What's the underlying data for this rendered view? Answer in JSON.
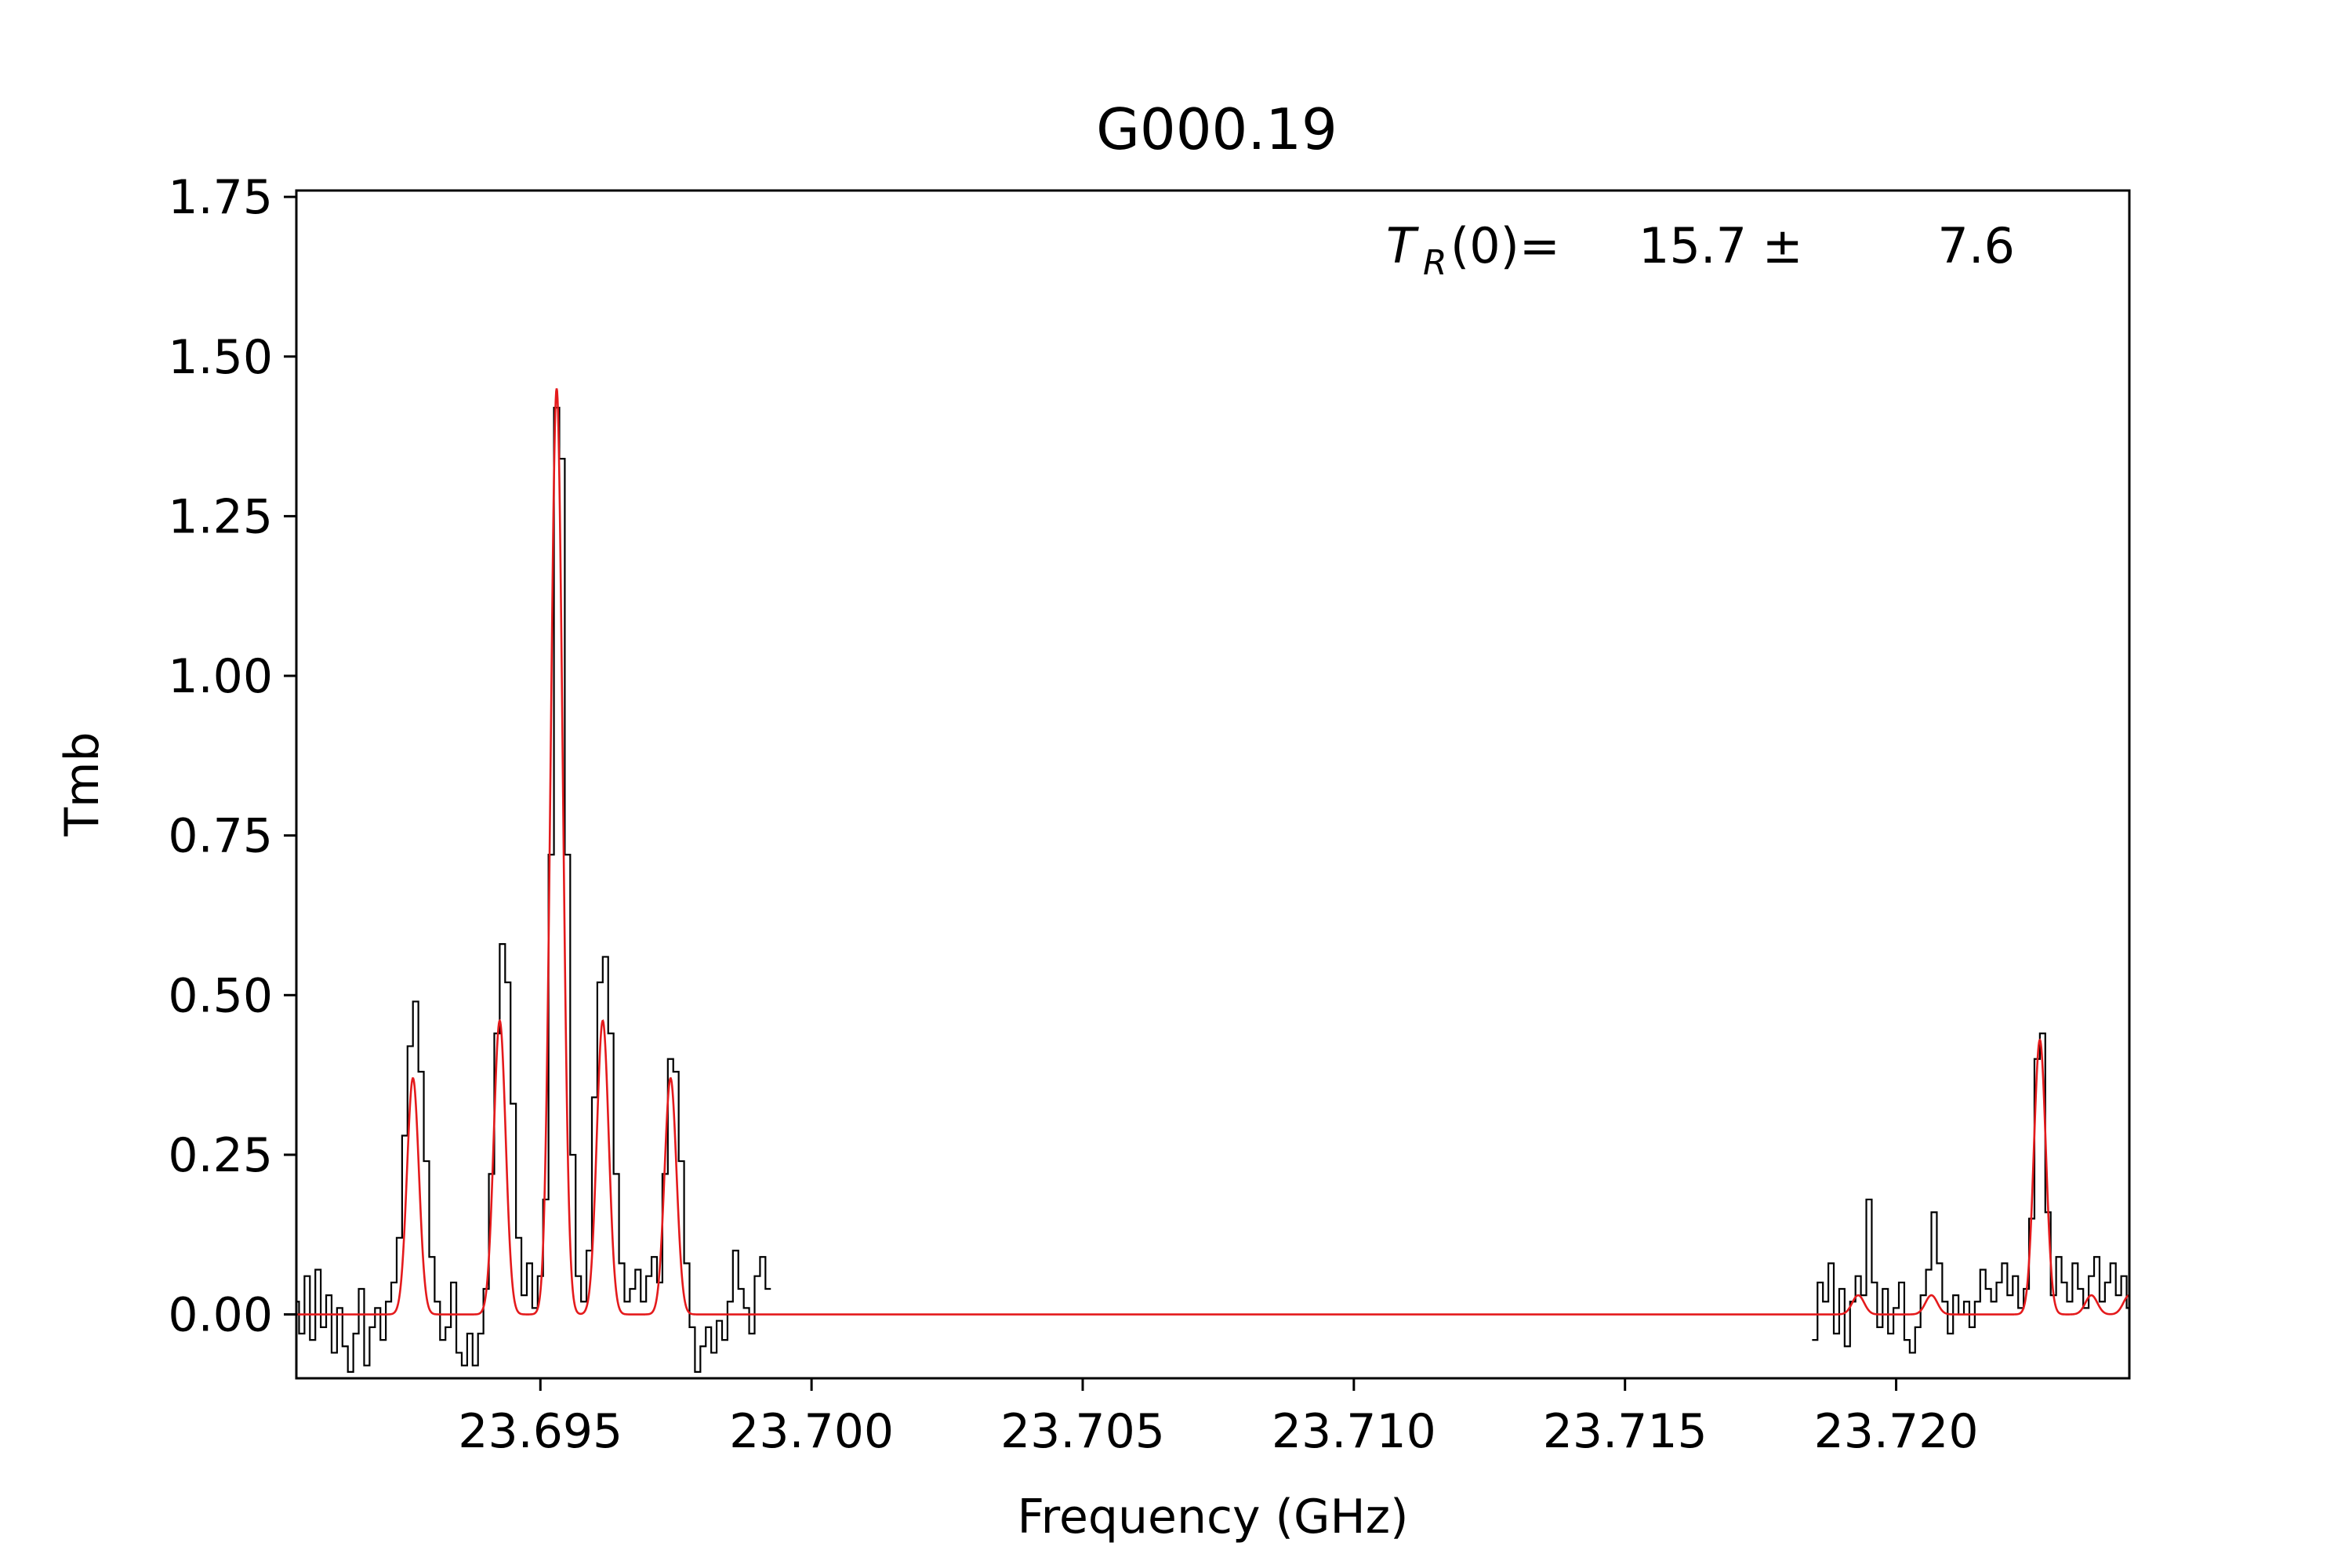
{
  "chart_data": {
    "type": "line",
    "title": "G000.19",
    "xlabel": "Frequency (GHz)",
    "ylabel": "Tmb",
    "xlim": [
      23.6905,
      23.7243
    ],
    "ylim": [
      -0.1,
      1.76
    ],
    "x_ticks": [
      23.695,
      23.7,
      23.705,
      23.71,
      23.715,
      23.72
    ],
    "x_tick_labels": [
      "23.695",
      "23.700",
      "23.705",
      "23.710",
      "23.715",
      "23.720"
    ],
    "y_ticks": [
      0.0,
      0.25,
      0.5,
      0.75,
      1.0,
      1.25,
      1.5,
      1.75
    ],
    "y_tick_labels": [
      "0.00",
      "0.25",
      "0.50",
      "0.75",
      "1.00",
      "1.25",
      "1.50",
      "1.75"
    ],
    "grid": false,
    "annotation": {
      "label_main": "T",
      "label_sub": "R",
      "label_rest": "(0)=",
      "value": "15.7 ±",
      "error": "7.6"
    },
    "series": [
      {
        "color": "#000000",
        "style": "steps",
        "segments": [
          [
            [
              23.6905,
              0.02
            ],
            [
              23.6906,
              -0.03
            ],
            [
              23.6907,
              0.06
            ],
            [
              23.6908,
              -0.04
            ],
            [
              23.6909,
              0.07
            ],
            [
              23.691,
              -0.02
            ],
            [
              23.6911,
              0.03
            ],
            [
              23.6912,
              -0.06
            ],
            [
              23.6913,
              0.01
            ],
            [
              23.6914,
              -0.05
            ],
            [
              23.6915,
              -0.09
            ],
            [
              23.6916,
              -0.03
            ],
            [
              23.6917,
              0.04
            ],
            [
              23.6918,
              -0.08
            ],
            [
              23.6919,
              -0.02
            ],
            [
              23.692,
              0.01
            ],
            [
              23.6921,
              -0.04
            ],
            [
              23.6922,
              0.02
            ],
            [
              23.6923,
              0.05
            ],
            [
              23.6924,
              0.12
            ],
            [
              23.6925,
              0.28
            ],
            [
              23.6926,
              0.42
            ],
            [
              23.6927,
              0.49
            ],
            [
              23.6928,
              0.38
            ],
            [
              23.6929,
              0.24
            ],
            [
              23.693,
              0.09
            ],
            [
              23.6931,
              0.02
            ],
            [
              23.6932,
              -0.04
            ],
            [
              23.6933,
              -0.02
            ],
            [
              23.6934,
              0.05
            ],
            [
              23.6935,
              -0.06
            ],
            [
              23.6936,
              -0.08
            ],
            [
              23.6937,
              -0.03
            ],
            [
              23.6938,
              -0.08
            ],
            [
              23.6939,
              -0.03
            ],
            [
              23.694,
              0.04
            ],
            [
              23.6941,
              0.22
            ],
            [
              23.6942,
              0.44
            ],
            [
              23.6943,
              0.58
            ],
            [
              23.6944,
              0.52
            ],
            [
              23.6945,
              0.33
            ],
            [
              23.6946,
              0.12
            ],
            [
              23.6947,
              0.03
            ],
            [
              23.6948,
              0.08
            ],
            [
              23.6949,
              0.01
            ],
            [
              23.695,
              0.06
            ],
            [
              23.6951,
              0.18
            ],
            [
              23.6952,
              0.72
            ],
            [
              23.6953,
              1.42
            ],
            [
              23.6954,
              1.34
            ],
            [
              23.6955,
              0.72
            ],
            [
              23.6956,
              0.25
            ],
            [
              23.6957,
              0.06
            ],
            [
              23.6958,
              0.02
            ],
            [
              23.6959,
              0.1
            ],
            [
              23.696,
              0.34
            ],
            [
              23.6961,
              0.52
            ],
            [
              23.6962,
              0.56
            ],
            [
              23.6963,
              0.44
            ],
            [
              23.6964,
              0.22
            ],
            [
              23.6965,
              0.08
            ],
            [
              23.6966,
              0.02
            ],
            [
              23.6967,
              0.04
            ],
            [
              23.6968,
              0.07
            ],
            [
              23.6969,
              0.02
            ],
            [
              23.697,
              0.06
            ],
            [
              23.6971,
              0.09
            ],
            [
              23.6972,
              0.05
            ],
            [
              23.6973,
              0.22
            ],
            [
              23.6974,
              0.4
            ],
            [
              23.6975,
              0.38
            ],
            [
              23.6976,
              0.24
            ],
            [
              23.6977,
              0.08
            ],
            [
              23.6978,
              -0.02
            ],
            [
              23.6979,
              -0.09
            ],
            [
              23.698,
              -0.05
            ],
            [
              23.6981,
              -0.02
            ],
            [
              23.6982,
              -0.06
            ],
            [
              23.6983,
              -0.01
            ],
            [
              23.6984,
              -0.04
            ],
            [
              23.6985,
              0.02
            ],
            [
              23.6986,
              0.1
            ],
            [
              23.6987,
              0.04
            ],
            [
              23.6988,
              0.01
            ],
            [
              23.6989,
              -0.03
            ],
            [
              23.699,
              0.06
            ],
            [
              23.6991,
              0.09
            ],
            [
              23.6992,
              0.04
            ]
          ],
          [
            [
              23.7185,
              -0.04
            ],
            [
              23.7186,
              0.05
            ],
            [
              23.7187,
              0.02
            ],
            [
              23.7188,
              0.08
            ],
            [
              23.7189,
              -0.03
            ],
            [
              23.719,
              0.04
            ],
            [
              23.7191,
              -0.05
            ],
            [
              23.7192,
              0.02
            ],
            [
              23.7193,
              0.06
            ],
            [
              23.7194,
              0.03
            ],
            [
              23.7195,
              0.18
            ],
            [
              23.7196,
              0.05
            ],
            [
              23.7197,
              -0.02
            ],
            [
              23.7198,
              0.04
            ],
            [
              23.7199,
              -0.03
            ],
            [
              23.72,
              0.01
            ],
            [
              23.7201,
              0.05
            ],
            [
              23.7202,
              -0.04
            ],
            [
              23.7203,
              -0.06
            ],
            [
              23.7204,
              -0.02
            ],
            [
              23.7205,
              0.03
            ],
            [
              23.7206,
              0.07
            ],
            [
              23.7207,
              0.16
            ],
            [
              23.7208,
              0.08
            ],
            [
              23.7209,
              0.02
            ],
            [
              23.721,
              -0.03
            ],
            [
              23.7211,
              0.03
            ],
            [
              23.7212,
              0.0
            ],
            [
              23.7213,
              0.02
            ],
            [
              23.7214,
              -0.02
            ],
            [
              23.7215,
              0.02
            ],
            [
              23.7216,
              0.07
            ],
            [
              23.7217,
              0.04
            ],
            [
              23.7218,
              0.02
            ],
            [
              23.7219,
              0.05
            ],
            [
              23.722,
              0.08
            ],
            [
              23.7221,
              0.03
            ],
            [
              23.7222,
              0.06
            ],
            [
              23.7223,
              0.01
            ],
            [
              23.7224,
              0.04
            ],
            [
              23.7225,
              0.15
            ],
            [
              23.7226,
              0.4
            ],
            [
              23.7227,
              0.44
            ],
            [
              23.7228,
              0.16
            ],
            [
              23.7229,
              0.03
            ],
            [
              23.723,
              0.09
            ],
            [
              23.7231,
              0.05
            ],
            [
              23.7232,
              0.02
            ],
            [
              23.7233,
              0.08
            ],
            [
              23.7234,
              0.04
            ],
            [
              23.7235,
              0.01
            ],
            [
              23.7236,
              0.06
            ],
            [
              23.7237,
              0.09
            ],
            [
              23.7238,
              0.02
            ],
            [
              23.7239,
              0.05
            ],
            [
              23.724,
              0.08
            ],
            [
              23.7241,
              0.03
            ],
            [
              23.7242,
              0.06
            ],
            [
              23.7243,
              0.01
            ]
          ]
        ]
      },
      {
        "color": "#e41a1c",
        "style": "model",
        "baseline": 0.0,
        "components": [
          {
            "center": 23.69265,
            "amplitude": 0.37,
            "width": 0.00011
          },
          {
            "center": 23.69425,
            "amplitude": 0.46,
            "width": 0.00011
          },
          {
            "center": 23.6953,
            "amplitude": 1.45,
            "width": 0.00011
          },
          {
            "center": 23.69615,
            "amplitude": 0.46,
            "width": 0.00011
          },
          {
            "center": 23.6974,
            "amplitude": 0.37,
            "width": 0.00011
          },
          {
            "center": 23.7193,
            "amplitude": 0.03,
            "width": 0.00011
          },
          {
            "center": 23.72065,
            "amplitude": 0.03,
            "width": 0.00011
          },
          {
            "center": 23.72265,
            "amplitude": 0.43,
            "width": 0.00011
          },
          {
            "center": 23.7236,
            "amplitude": 0.03,
            "width": 0.00011
          },
          {
            "center": 23.7243,
            "amplitude": 0.03,
            "width": 0.00011
          }
        ]
      }
    ]
  }
}
